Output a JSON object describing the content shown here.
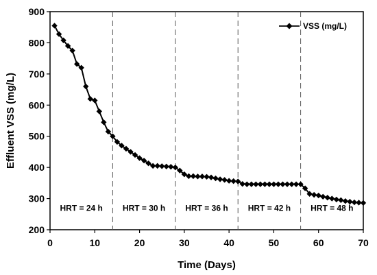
{
  "chart_data": {
    "type": "line",
    "xlabel": "Time (Days)",
    "ylabel": "Effluent VSS (mg/L)",
    "xlim": [
      0,
      70
    ],
    "ylim": [
      200,
      900
    ],
    "xticks": [
      0,
      10,
      20,
      30,
      40,
      50,
      60,
      70
    ],
    "yticks": [
      200,
      300,
      400,
      500,
      600,
      700,
      800,
      900
    ],
    "grid": false,
    "legend_position": "top-right",
    "marker": "diamond",
    "color": "#000000",
    "series": [
      {
        "name": "VSS (mg/L)",
        "x": [
          1,
          2,
          3,
          4,
          5,
          6,
          7,
          8,
          9,
          10,
          11,
          12,
          13,
          14,
          15,
          16,
          17,
          18,
          19,
          20,
          21,
          22,
          23,
          24,
          25,
          26,
          27,
          28,
          29,
          30,
          31,
          32,
          33,
          34,
          35,
          36,
          37,
          38,
          39,
          40,
          41,
          42,
          43,
          44,
          45,
          46,
          47,
          48,
          49,
          50,
          51,
          52,
          53,
          54,
          55,
          56,
          57,
          58,
          59,
          60,
          61,
          62,
          63,
          64,
          65,
          66,
          67,
          68,
          69,
          70
        ],
        "y": [
          855,
          828,
          808,
          790,
          775,
          732,
          720,
          660,
          620,
          615,
          580,
          545,
          515,
          500,
          482,
          470,
          460,
          450,
          440,
          430,
          422,
          413,
          405,
          405,
          404,
          403,
          402,
          400,
          390,
          378,
          372,
          372,
          371,
          371,
          370,
          368,
          365,
          362,
          360,
          357,
          356,
          355,
          347,
          346,
          346,
          346,
          346,
          346,
          346,
          346,
          346,
          346,
          346,
          346,
          346,
          346,
          333,
          315,
          312,
          310,
          306,
          303,
          300,
          297,
          295,
          292,
          290,
          288,
          287,
          286
        ]
      }
    ],
    "vlines": [
      14,
      28,
      42,
      56
    ],
    "regions": [
      {
        "label": "HRT = 24 h",
        "x": 7
      },
      {
        "label": "HRT = 30 h",
        "x": 21
      },
      {
        "label": "HRT = 36 h",
        "x": 35
      },
      {
        "label": "HRT = 42 h",
        "x": 49
      },
      {
        "label": "HRT = 48 h",
        "x": 63
      }
    ],
    "region_label_y": 260
  }
}
